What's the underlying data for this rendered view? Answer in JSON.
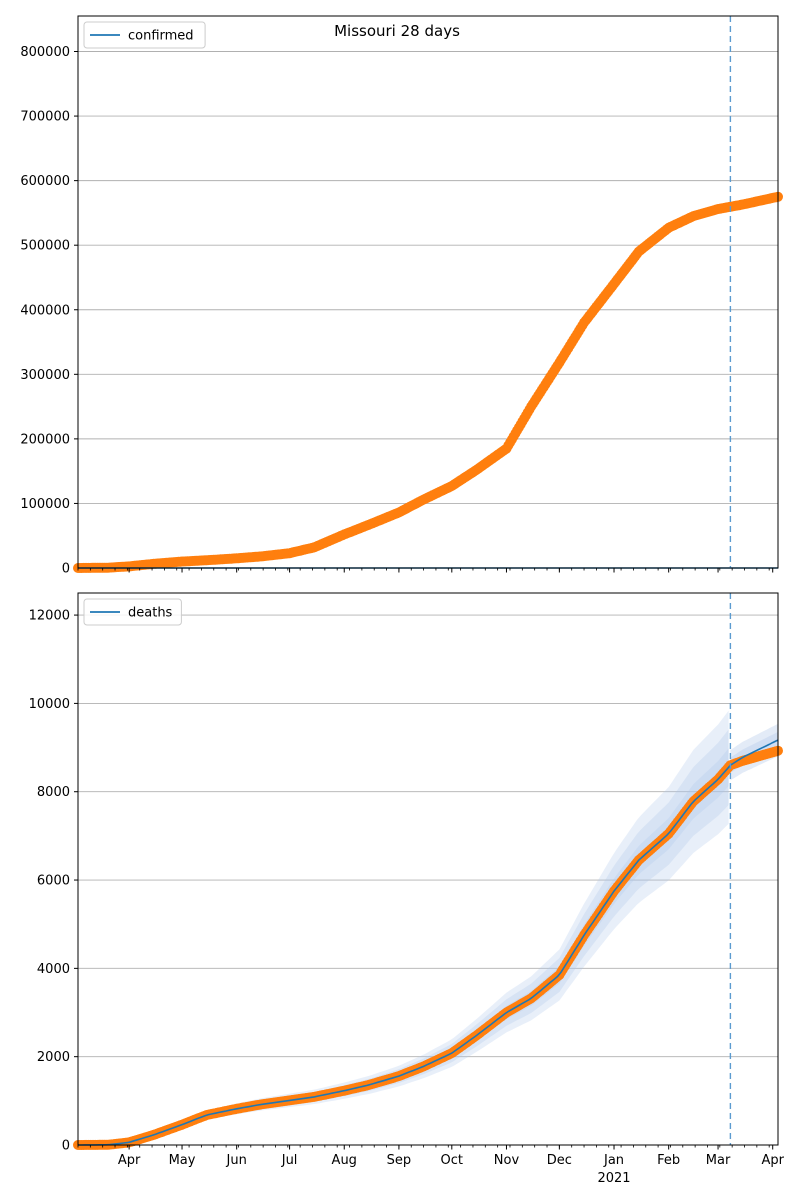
{
  "figure": {
    "title": "Missouri 28 days"
  },
  "x_axis": {
    "ticks": [
      {
        "label": "Apr",
        "date": "2020-04-01"
      },
      {
        "label": "May",
        "date": "2020-05-01"
      },
      {
        "label": "Jun",
        "date": "2020-06-01"
      },
      {
        "label": "Jul",
        "date": "2020-07-01"
      },
      {
        "label": "Aug",
        "date": "2020-08-01"
      },
      {
        "label": "Sep",
        "date": "2020-09-01"
      },
      {
        "label": "Oct",
        "date": "2020-10-01"
      },
      {
        "label": "Nov",
        "date": "2020-11-01"
      },
      {
        "label": "Dec",
        "date": "2020-12-01"
      },
      {
        "label": "Jan",
        "date": "2021-01-01"
      },
      {
        "label": "Feb",
        "date": "2021-02-01"
      },
      {
        "label": "Mar",
        "date": "2021-03-01"
      },
      {
        "label": "Apr",
        "date": "2021-04-01"
      }
    ],
    "year_label": {
      "label": "2021",
      "date": "2021-01-01"
    },
    "range": [
      "2020-03-03",
      "2021-04-04"
    ],
    "forecast_start": "2021-03-08"
  },
  "colors": {
    "model_line": "#1f77b4",
    "observed_points": "#ff7f0e",
    "band": "#aec7e8",
    "forecast_line": "#5b9bd0",
    "grid": "#b0b0b0"
  },
  "chart_data": [
    {
      "type": "line",
      "title": "Missouri 28 days",
      "legend": {
        "label": "confirmed",
        "position": "top-left"
      },
      "ylim": [
        0,
        855000
      ],
      "yticks": [
        0,
        100000,
        200000,
        300000,
        400000,
        500000,
        600000,
        700000,
        800000
      ],
      "grid": "horizontal",
      "observed": {
        "dates": [
          "2020-03-03",
          "2020-03-20",
          "2020-04-01",
          "2020-04-15",
          "2020-05-01",
          "2020-05-15",
          "2020-06-01",
          "2020-06-15",
          "2020-07-01",
          "2020-07-15",
          "2020-08-01",
          "2020-08-15",
          "2020-09-01",
          "2020-09-15",
          "2020-10-01",
          "2020-10-15",
          "2020-11-01",
          "2020-11-15",
          "2020-12-01",
          "2020-12-15",
          "2021-01-01",
          "2021-01-15",
          "2021-02-01",
          "2021-02-15",
          "2021-03-01",
          "2021-03-15",
          "2021-04-04"
        ],
        "values": [
          0,
          500,
          2500,
          6500,
          10000,
          12000,
          15000,
          18000,
          23000,
          32000,
          52000,
          67000,
          86000,
          106000,
          127000,
          152000,
          185000,
          250000,
          318000,
          380000,
          440000,
          490000,
          527000,
          545000,
          556000,
          563000,
          575000
        ]
      },
      "model": {
        "dates": [
          "2020-03-03",
          "2021-03-08",
          "2021-04-04"
        ],
        "values": [
          0,
          0,
          0
        ]
      }
    },
    {
      "type": "line",
      "legend": {
        "label": "deaths",
        "position": "top-left"
      },
      "ylim": [
        0,
        12500
      ],
      "yticks": [
        0,
        2000,
        4000,
        6000,
        8000,
        10000,
        12000
      ],
      "grid": "horizontal",
      "observed": {
        "dates": [
          "2020-03-03",
          "2020-03-20",
          "2020-04-01",
          "2020-04-15",
          "2020-05-01",
          "2020-05-15",
          "2020-06-01",
          "2020-06-15",
          "2020-07-01",
          "2020-07-15",
          "2020-08-01",
          "2020-08-15",
          "2020-09-01",
          "2020-09-15",
          "2020-10-01",
          "2020-10-15",
          "2020-11-01",
          "2020-11-15",
          "2020-12-01",
          "2020-12-15",
          "2021-01-01",
          "2021-01-15",
          "2021-02-01",
          "2021-02-15",
          "2021-03-01",
          "2021-03-08",
          "2021-03-15",
          "2021-04-04"
        ],
        "values": [
          0,
          5,
          60,
          230,
          460,
          680,
          820,
          920,
          1010,
          1090,
          1230,
          1360,
          1560,
          1780,
          2080,
          2480,
          3000,
          3320,
          3850,
          4750,
          5750,
          6450,
          7050,
          7780,
          8280,
          8600,
          8700,
          8930
        ]
      },
      "model": {
        "dates": [
          "2020-03-03",
          "2020-03-20",
          "2020-04-01",
          "2020-04-15",
          "2020-05-01",
          "2020-05-15",
          "2020-06-01",
          "2020-06-15",
          "2020-07-01",
          "2020-07-15",
          "2020-08-01",
          "2020-08-15",
          "2020-09-01",
          "2020-09-15",
          "2020-10-01",
          "2020-10-15",
          "2020-11-01",
          "2020-11-15",
          "2020-12-01",
          "2020-12-15",
          "2021-01-01",
          "2021-01-15",
          "2021-02-01",
          "2021-02-15",
          "2021-03-01",
          "2021-03-08",
          "2021-03-15",
          "2021-04-04"
        ],
        "values": [
          0,
          5,
          60,
          230,
          460,
          680,
          820,
          920,
          1010,
          1090,
          1230,
          1360,
          1560,
          1780,
          2080,
          2480,
          3000,
          3320,
          3850,
          4750,
          5750,
          6450,
          7050,
          7780,
          8280,
          8600,
          8780,
          9170
        ]
      },
      "bands": {
        "dates": [
          "2020-04-15",
          "2020-05-01",
          "2020-05-15",
          "2020-06-01",
          "2020-06-15",
          "2020-07-01",
          "2020-07-15",
          "2020-08-01",
          "2020-08-15",
          "2020-09-01",
          "2020-09-15",
          "2020-10-01",
          "2020-10-15",
          "2020-11-01",
          "2020-11-15",
          "2020-12-01",
          "2020-12-15",
          "2021-01-01",
          "2021-01-15",
          "2021-02-01",
          "2021-02-15",
          "2021-03-01",
          "2021-03-08"
        ],
        "spread": [
          [
            0.85,
            1.15
          ],
          [
            0.9,
            1.1
          ],
          [
            0.95,
            1.05
          ]
        ]
      },
      "forecast_bands": {
        "dates": [
          "2021-03-08",
          "2021-03-20",
          "2021-04-04"
        ],
        "spread": [
          [
            0.96,
            1.04
          ],
          [
            0.98,
            1.02
          ]
        ]
      }
    }
  ]
}
